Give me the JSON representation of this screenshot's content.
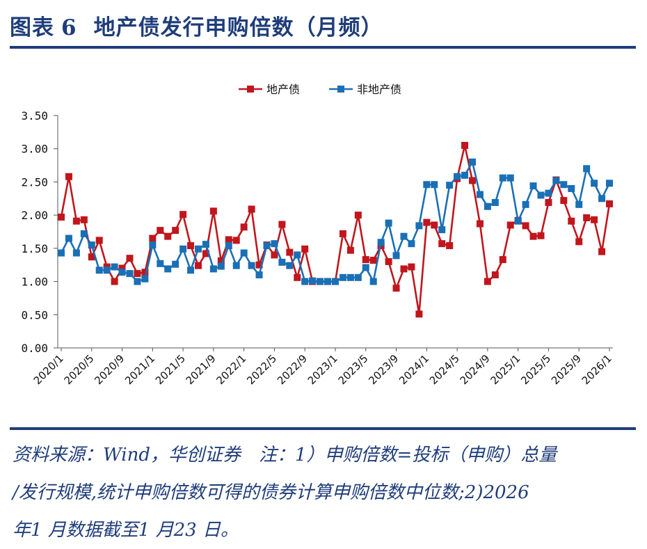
{
  "header": {
    "label": "图表",
    "number": "6",
    "title": "地产债发行申购倍数（月频）"
  },
  "footnote": {
    "lines": [
      "资料来源：Wind，华创证券　注：1）申购倍数=投标（申购）总量",
      "/发行规模,统计申购倍数可得的债券计算申购倍数中位数;2)2026",
      "年1 月数据截至1 月23 日。"
    ]
  },
  "chart_data": {
    "type": "line",
    "ylim": [
      0,
      3.5
    ],
    "yticks": [
      "0.00",
      "0.50",
      "1.00",
      "1.50",
      "2.00",
      "2.50",
      "3.00",
      "3.50"
    ],
    "ytick_values": [
      0,
      0.5,
      1,
      1.5,
      2,
      2.5,
      3,
      3.5
    ],
    "xtick_labels": [
      "2020/1",
      "2020/5",
      "2020/9",
      "2021/1",
      "2021/5",
      "2021/9",
      "2022/1",
      "2022/5",
      "2022/9",
      "2023/1",
      "2023/5",
      "2023/9",
      "2024/1",
      "2024/5",
      "2024/9",
      "2025/1",
      "2025/5",
      "2025/9",
      "2026/1"
    ],
    "legend_position": "top-center",
    "series": [
      {
        "name": "地产债",
        "color": "#c0161d",
        "values": [
          1.97,
          2.58,
          1.91,
          1.93,
          1.37,
          1.62,
          1.22,
          1.0,
          1.2,
          1.35,
          1.12,
          1.14,
          1.65,
          1.77,
          1.68,
          1.77,
          2.01,
          1.54,
          1.24,
          1.42,
          2.06,
          1.31,
          1.63,
          1.62,
          1.82,
          2.09,
          1.25,
          1.55,
          1.4,
          1.86,
          1.44,
          1.06,
          1.49,
          1.0,
          1.0,
          1.0,
          1.0,
          1.72,
          1.47,
          2.0,
          1.33,
          1.32,
          1.54,
          1.3,
          0.9,
          1.19,
          1.22,
          0.51,
          1.89,
          1.85,
          1.57,
          1.54,
          2.55,
          3.05,
          2.52,
          1.87,
          1.0,
          1.1,
          1.33,
          1.85,
          1.92,
          1.84,
          1.68,
          1.69,
          2.19,
          2.53,
          2.22,
          1.91,
          1.6,
          1.96,
          1.93,
          1.45,
          2.17
        ]
      },
      {
        "name": "非地产债",
        "color": "#1a6fb5",
        "values": [
          1.43,
          1.65,
          1.43,
          1.72,
          1.55,
          1.17,
          1.17,
          1.22,
          1.14,
          1.12,
          1.0,
          1.04,
          1.55,
          1.27,
          1.19,
          1.26,
          1.49,
          1.17,
          1.49,
          1.56,
          1.19,
          1.23,
          1.54,
          1.24,
          1.43,
          1.24,
          1.1,
          1.54,
          1.57,
          1.29,
          1.24,
          1.4,
          1.0,
          1.01,
          1.0,
          1.0,
          1.0,
          1.06,
          1.06,
          1.06,
          1.21,
          1.0,
          1.59,
          1.88,
          1.39,
          1.68,
          1.57,
          1.84,
          2.46,
          2.46,
          1.78,
          2.45,
          2.58,
          2.6,
          2.8,
          2.31,
          2.13,
          2.19,
          2.56,
          2.56,
          1.91,
          2.16,
          2.44,
          2.3,
          2.33,
          2.52,
          2.46,
          2.4,
          2.16,
          2.7,
          2.48,
          2.25,
          2.48
        ]
      }
    ]
  }
}
